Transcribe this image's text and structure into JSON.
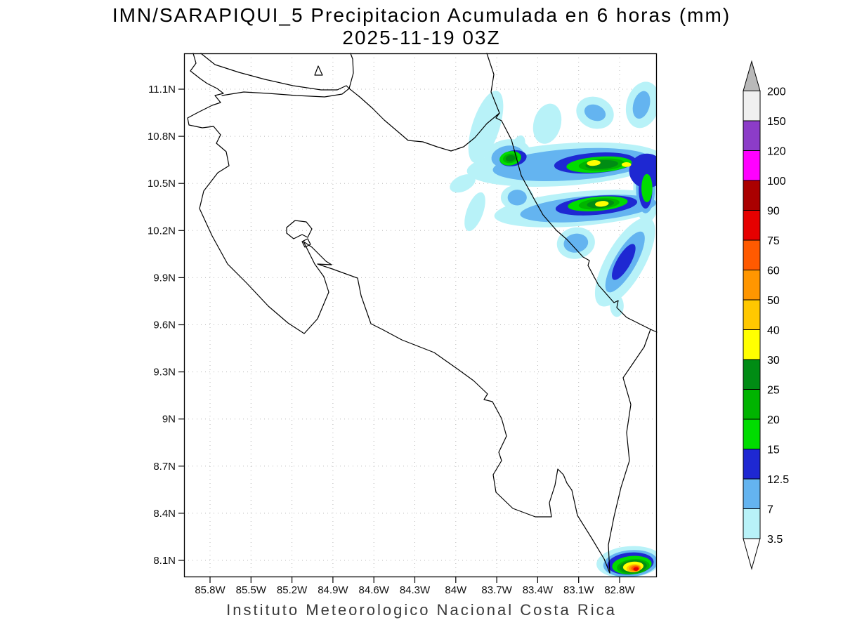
{
  "title": {
    "line1": "IMN/SARAPIQUI_5 Precipitacion Acumulada en 6 horas (mm)",
    "line2": "2025-11-19 03Z"
  },
  "footer": "Instituto Meteorologico Nacional Costa Rica",
  "chart_data": {
    "type": "heatmap",
    "title": "IMN/SARAPIQUI_5 Precipitacion Acumulada en 6 horas (mm)",
    "subtitle": "2025-11-19 03Z",
    "units": "mm",
    "region": "Costa Rica",
    "grid": "dotted",
    "lat_range_n": [
      8.0,
      11.33
    ],
    "lon_range_w": [
      86.0,
      82.53
    ],
    "lat_ticks": [
      {
        "value": 11.1,
        "label": "11.1N"
      },
      {
        "value": 10.8,
        "label": "10.8N"
      },
      {
        "value": 10.5,
        "label": "10.5N"
      },
      {
        "value": 10.2,
        "label": "10.2N"
      },
      {
        "value": 9.9,
        "label": "9.9N"
      },
      {
        "value": 9.6,
        "label": "9.6N"
      },
      {
        "value": 9.3,
        "label": "9.3N"
      },
      {
        "value": 9.0,
        "label": "9N"
      },
      {
        "value": 8.7,
        "label": "8.7N"
      },
      {
        "value": 8.4,
        "label": "8.4N"
      },
      {
        "value": 8.1,
        "label": "8.1N"
      }
    ],
    "lon_ticks": [
      {
        "value": 85.8,
        "label": "85.8W"
      },
      {
        "value": 85.5,
        "label": "85.5W"
      },
      {
        "value": 85.2,
        "label": "85.2W"
      },
      {
        "value": 84.9,
        "label": "84.9W"
      },
      {
        "value": 84.6,
        "label": "84.6W"
      },
      {
        "value": 84.3,
        "label": "84.3W"
      },
      {
        "value": 84.0,
        "label": "84W"
      },
      {
        "value": 83.7,
        "label": "83.7W"
      },
      {
        "value": 83.4,
        "label": "83.4W"
      },
      {
        "value": 83.1,
        "label": "83.1W"
      },
      {
        "value": 82.8,
        "label": "82.8W"
      }
    ],
    "colorbar": {
      "below_color": "#ffffff",
      "levels": [
        {
          "value": 3.5,
          "label": "3.5",
          "color": "#b8f2f8"
        },
        {
          "value": 7,
          "label": "7",
          "color": "#64b4f0"
        },
        {
          "value": 12.5,
          "label": "12.5",
          "color": "#1e28d2"
        },
        {
          "value": 15,
          "label": "15",
          "color": "#00dc00"
        },
        {
          "value": 20,
          "label": "20",
          "color": "#00b400"
        },
        {
          "value": 25,
          "label": "25",
          "color": "#008c14"
        },
        {
          "value": 30,
          "label": "30",
          "color": "#ffff00"
        },
        {
          "value": 40,
          "label": "40",
          "color": "#ffc800"
        },
        {
          "value": 50,
          "label": "50",
          "color": "#ff9600"
        },
        {
          "value": 60,
          "label": "60",
          "color": "#ff5a00"
        },
        {
          "value": 75,
          "label": "75",
          "color": "#e60000"
        },
        {
          "value": 90,
          "label": "90",
          "color": "#aa0000"
        },
        {
          "value": 100,
          "label": "100",
          "color": "#ff00ff"
        },
        {
          "value": 120,
          "label": "120",
          "color": "#8c3cc8"
        },
        {
          "value": 150,
          "label": "150",
          "color": "#f0f0f0"
        },
        {
          "value": 200,
          "label": "200",
          "color": "#b9b9b9"
        }
      ]
    },
    "precipitation_cells": [
      {
        "lat": 10.86,
        "lon_w": 83.78,
        "rx": 0.1,
        "ry": 0.24,
        "rot": 18,
        "level": 3.5
      },
      {
        "lat": 10.88,
        "lon_w": 83.33,
        "rx": 0.1,
        "ry": 0.13,
        "rot": 15,
        "level": 3.5
      },
      {
        "lat": 10.95,
        "lon_w": 82.98,
        "rx": 0.14,
        "ry": 0.1,
        "rot": 20,
        "level": 3.5
      },
      {
        "lat": 11.0,
        "lon_w": 82.63,
        "rx": 0.12,
        "ry": 0.15,
        "rot": 15,
        "level": 3.5
      },
      {
        "lat": 10.72,
        "lon_w": 83.55,
        "rx": 0.05,
        "ry": 0.09,
        "rot": 20,
        "level": 3.5
      },
      {
        "lat": 10.62,
        "lon_w": 83.2,
        "rx": 0.72,
        "ry": 0.135,
        "rot": -4,
        "level": 3.5
      },
      {
        "lat": 10.68,
        "lon_w": 83.62,
        "rx": 0.17,
        "ry": 0.1,
        "rot": -10,
        "level": 3.5
      },
      {
        "lat": 10.5,
        "lon_w": 83.95,
        "rx": 0.1,
        "ry": 0.05,
        "rot": -25,
        "level": 3.5
      },
      {
        "lat": 10.32,
        "lon_w": 83.86,
        "rx": 0.06,
        "ry": 0.13,
        "rot": 20,
        "level": 3.5
      },
      {
        "lat": 10.34,
        "lon_w": 83.08,
        "rx": 0.64,
        "ry": 0.11,
        "rot": -5,
        "level": 3.5
      },
      {
        "lat": 10.41,
        "lon_w": 83.55,
        "rx": 0.12,
        "ry": 0.08,
        "rot": 0,
        "level": 3.5
      },
      {
        "lat": 10.12,
        "lon_w": 83.12,
        "rx": 0.14,
        "ry": 0.1,
        "rot": -10,
        "level": 3.5
      },
      {
        "lat": 10.0,
        "lon_w": 82.76,
        "rx": 0.14,
        "ry": 0.32,
        "rot": 30,
        "level": 3.5
      },
      {
        "lat": 9.72,
        "lon_w": 82.82,
        "rx": 0.05,
        "ry": 0.07,
        "rot": 0,
        "level": 3.5
      },
      {
        "lat": 10.47,
        "lon_w": 82.6,
        "rx": 0.1,
        "ry": 0.22,
        "rot": 0,
        "level": 3.5
      },
      {
        "lat": 8.09,
        "lon_w": 82.73,
        "rx": 0.24,
        "ry": 0.1,
        "rot": -5,
        "level": 3.5
      },
      {
        "lat": 10.95,
        "lon_w": 82.98,
        "rx": 0.08,
        "ry": 0.05,
        "rot": 20,
        "level": 7
      },
      {
        "lat": 11.0,
        "lon_w": 82.64,
        "rx": 0.06,
        "ry": 0.09,
        "rot": 15,
        "level": 7
      },
      {
        "lat": 10.62,
        "lon_w": 83.15,
        "rx": 0.58,
        "ry": 0.1,
        "rot": -4,
        "level": 7
      },
      {
        "lat": 10.67,
        "lon_w": 83.62,
        "rx": 0.12,
        "ry": 0.07,
        "rot": -10,
        "level": 7
      },
      {
        "lat": 10.34,
        "lon_w": 83.03,
        "rx": 0.5,
        "ry": 0.08,
        "rot": -5,
        "level": 7
      },
      {
        "lat": 10.41,
        "lon_w": 83.55,
        "rx": 0.07,
        "ry": 0.05,
        "rot": 0,
        "level": 7
      },
      {
        "lat": 10.12,
        "lon_w": 83.12,
        "rx": 0.09,
        "ry": 0.06,
        "rot": -10,
        "level": 7
      },
      {
        "lat": 10.0,
        "lon_w": 82.76,
        "rx": 0.08,
        "ry": 0.22,
        "rot": 30,
        "level": 7
      },
      {
        "lat": 10.47,
        "lon_w": 82.61,
        "rx": 0.07,
        "ry": 0.16,
        "rot": 0,
        "level": 7
      },
      {
        "lat": 8.08,
        "lon_w": 82.72,
        "rx": 0.2,
        "ry": 0.085,
        "rot": -5,
        "level": 7
      },
      {
        "lat": 10.63,
        "lon_w": 82.98,
        "rx": 0.3,
        "ry": 0.065,
        "rot": -4,
        "level": 12.5
      },
      {
        "lat": 10.66,
        "lon_w": 83.58,
        "rx": 0.1,
        "ry": 0.05,
        "rot": -10,
        "level": 12.5
      },
      {
        "lat": 10.58,
        "lon_w": 82.6,
        "rx": 0.13,
        "ry": 0.11,
        "rot": 0,
        "level": 12.5
      },
      {
        "lat": 10.36,
        "lon_w": 82.97,
        "rx": 0.3,
        "ry": 0.06,
        "rot": -5,
        "level": 12.5
      },
      {
        "lat": 10.46,
        "lon_w": 82.61,
        "rx": 0.05,
        "ry": 0.12,
        "rot": 0,
        "level": 12.5
      },
      {
        "lat": 10.0,
        "lon_w": 82.77,
        "rx": 0.05,
        "ry": 0.13,
        "rot": 30,
        "level": 12.5
      },
      {
        "lat": 8.08,
        "lon_w": 82.72,
        "rx": 0.17,
        "ry": 0.07,
        "rot": -5,
        "level": 12.5
      },
      {
        "lat": 10.66,
        "lon_w": 83.6,
        "rx": 0.08,
        "ry": 0.045,
        "rot": -10,
        "level": 15
      },
      {
        "lat": 10.62,
        "lon_w": 82.95,
        "rx": 0.24,
        "ry": 0.05,
        "rot": -4,
        "level": 15
      },
      {
        "lat": 10.37,
        "lon_w": 82.96,
        "rx": 0.22,
        "ry": 0.045,
        "rot": -5,
        "level": 15
      },
      {
        "lat": 10.47,
        "lon_w": 82.6,
        "rx": 0.04,
        "ry": 0.09,
        "rot": 0,
        "level": 15
      },
      {
        "lat": 8.07,
        "lon_w": 82.71,
        "rx": 0.145,
        "ry": 0.058,
        "rot": -5,
        "level": 15
      },
      {
        "lat": 10.66,
        "lon_w": 83.6,
        "rx": 0.055,
        "ry": 0.03,
        "rot": -10,
        "level": 20
      },
      {
        "lat": 10.62,
        "lon_w": 82.93,
        "rx": 0.17,
        "ry": 0.038,
        "rot": -4,
        "level": 20
      },
      {
        "lat": 10.37,
        "lon_w": 82.95,
        "rx": 0.15,
        "ry": 0.035,
        "rot": -5,
        "level": 20
      },
      {
        "lat": 8.06,
        "lon_w": 82.7,
        "rx": 0.12,
        "ry": 0.048,
        "rot": -5,
        "level": 20
      },
      {
        "lat": 10.66,
        "lon_w": 83.6,
        "rx": 0.035,
        "ry": 0.02,
        "rot": -10,
        "level": 25
      },
      {
        "lat": 10.62,
        "lon_w": 82.93,
        "rx": 0.12,
        "ry": 0.028,
        "rot": -4,
        "level": 25
      },
      {
        "lat": 10.37,
        "lon_w": 82.94,
        "rx": 0.1,
        "ry": 0.026,
        "rot": -5,
        "level": 25
      },
      {
        "lat": 8.06,
        "lon_w": 82.7,
        "rx": 0.1,
        "ry": 0.04,
        "rot": -5,
        "level": 25
      },
      {
        "lat": 10.63,
        "lon_w": 82.99,
        "rx": 0.05,
        "ry": 0.018,
        "rot": -4,
        "level": 30
      },
      {
        "lat": 10.62,
        "lon_w": 82.75,
        "rx": 0.035,
        "ry": 0.015,
        "rot": 0,
        "level": 30
      },
      {
        "lat": 10.37,
        "lon_w": 82.93,
        "rx": 0.05,
        "ry": 0.018,
        "rot": -5,
        "level": 30
      },
      {
        "lat": 8.06,
        "lon_w": 82.7,
        "rx": 0.075,
        "ry": 0.032,
        "rot": -5,
        "level": 30
      },
      {
        "lat": 8.05,
        "lon_w": 82.695,
        "rx": 0.055,
        "ry": 0.026,
        "rot": -5,
        "level": 40
      },
      {
        "lat": 8.05,
        "lon_w": 82.69,
        "rx": 0.042,
        "ry": 0.021,
        "rot": -5,
        "level": 50
      },
      {
        "lat": 8.05,
        "lon_w": 82.685,
        "rx": 0.03,
        "ry": 0.016,
        "rot": -5,
        "level": 60
      },
      {
        "lat": 8.045,
        "lon_w": 82.68,
        "rx": 0.02,
        "ry": 0.012,
        "rot": -5,
        "level": 75
      }
    ]
  }
}
